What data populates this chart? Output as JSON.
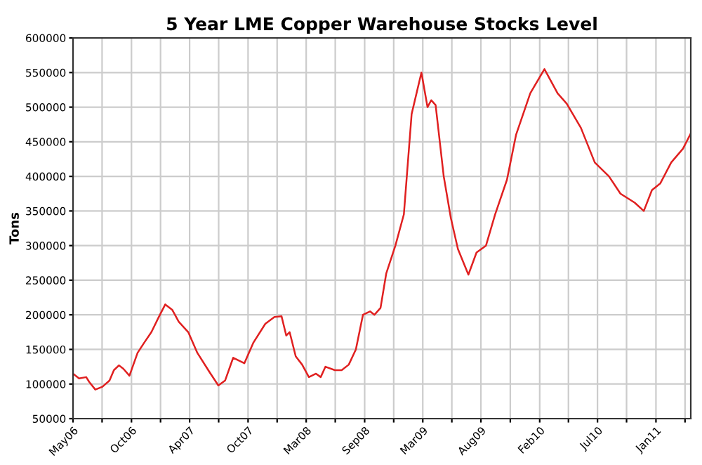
{
  "chart_data": {
    "type": "line",
    "title": "5 Year LME Copper Warehouse Stocks Level",
    "ylabel": "Tons",
    "x": [
      "2006-05-01",
      "2006-05-19",
      "2006-06-09",
      "2006-06-18",
      "2006-07-06",
      "2006-07-27",
      "2006-08-17",
      "2006-08-30",
      "2006-09-14",
      "2006-09-27",
      "2006-10-15",
      "2006-11-08",
      "2006-11-28",
      "2006-12-19",
      "2007-01-09",
      "2007-01-29",
      "2007-02-19",
      "2007-03-10",
      "2007-04-07",
      "2007-05-04",
      "2007-06-08",
      "2007-07-05",
      "2007-07-25",
      "2007-08-18",
      "2007-09-20",
      "2007-10-17",
      "2007-11-21",
      "2007-12-18",
      "2008-01-08",
      "2008-01-22",
      "2008-02-01",
      "2008-02-19",
      "2008-03-09",
      "2008-03-29",
      "2008-04-19",
      "2008-05-03",
      "2008-05-17",
      "2008-06-14",
      "2008-07-04",
      "2008-07-25",
      "2008-08-15",
      "2008-09-05",
      "2008-09-26",
      "2008-10-09",
      "2008-10-27",
      "2008-11-13",
      "2008-12-10",
      "2009-01-04",
      "2009-01-27",
      "2009-02-25",
      "2009-03-15",
      "2009-03-26",
      "2009-04-08",
      "2009-05-02",
      "2009-05-23",
      "2009-06-13",
      "2009-07-14",
      "2009-08-07",
      "2009-09-04",
      "2009-10-01",
      "2009-11-05",
      "2009-12-02",
      "2010-01-13",
      "2010-02-24",
      "2010-04-04",
      "2010-05-01",
      "2010-06-12",
      "2010-07-23",
      "2010-09-03",
      "2010-10-07",
      "2010-11-18",
      "2010-12-15",
      "2011-01-08",
      "2011-02-02",
      "2011-03-06",
      "2011-04-10",
      "2011-05-03"
    ],
    "series": [
      {
        "color": "#e02020",
        "values": [
          115000,
          108000,
          110000,
          103000,
          92000,
          96000,
          105000,
          120000,
          127000,
          122000,
          112000,
          145000,
          160000,
          175000,
          196000,
          215000,
          207000,
          190000,
          175000,
          145000,
          118000,
          98000,
          105000,
          138000,
          130000,
          160000,
          187000,
          197000,
          198000,
          170000,
          175000,
          140000,
          128000,
          110000,
          115000,
          110000,
          125000,
          120000,
          120000,
          128000,
          150000,
          200000,
          205000,
          200000,
          210000,
          260000,
          300000,
          345000,
          490000,
          550000,
          500000,
          510000,
          503000,
          400000,
          340000,
          295000,
          258000,
          290000,
          300000,
          345000,
          395000,
          460000,
          520000,
          555000,
          520000,
          505000,
          470000,
          420000,
          400000,
          375000,
          362000,
          350000,
          380000,
          390000,
          420000,
          440000,
          462000
        ]
      }
    ],
    "xlim": [
      "2006-05-01",
      "2011-05-03"
    ],
    "xticks": [
      {
        "value": "2006-05-01",
        "label": "May06"
      },
      {
        "value": "2006-07-26",
        "label": null
      },
      {
        "value": "2006-10-21",
        "label": "Oct06"
      },
      {
        "value": "2007-01-15",
        "label": null
      },
      {
        "value": "2007-04-11",
        "label": "Apr07"
      },
      {
        "value": "2007-07-06",
        "label": null
      },
      {
        "value": "2007-10-01",
        "label": "Oct07"
      },
      {
        "value": "2007-12-26",
        "label": null
      },
      {
        "value": "2008-03-21",
        "label": "Mar08"
      },
      {
        "value": "2008-06-15",
        "label": null
      },
      {
        "value": "2008-09-10",
        "label": "Sep08"
      },
      {
        "value": "2008-12-05",
        "label": null
      },
      {
        "value": "2009-03-01",
        "label": "Mar09"
      },
      {
        "value": "2009-05-26",
        "label": null
      },
      {
        "value": "2009-08-20",
        "label": "Aug09"
      },
      {
        "value": "2009-11-15",
        "label": null
      },
      {
        "value": "2010-02-10",
        "label": "Feb10"
      },
      {
        "value": "2010-05-06",
        "label": null
      },
      {
        "value": "2010-07-31",
        "label": "Jul10"
      },
      {
        "value": "2010-10-25",
        "label": null
      },
      {
        "value": "2011-01-20",
        "label": "Jan11"
      },
      {
        "value": "2011-04-16",
        "label": null
      }
    ],
    "ylim": [
      50000,
      600000
    ],
    "yticks": [
      50000,
      100000,
      150000,
      200000,
      250000,
      300000,
      350000,
      400000,
      450000,
      500000,
      550000,
      600000
    ],
    "grid": true,
    "marker": "none",
    "line_style": "solid"
  }
}
